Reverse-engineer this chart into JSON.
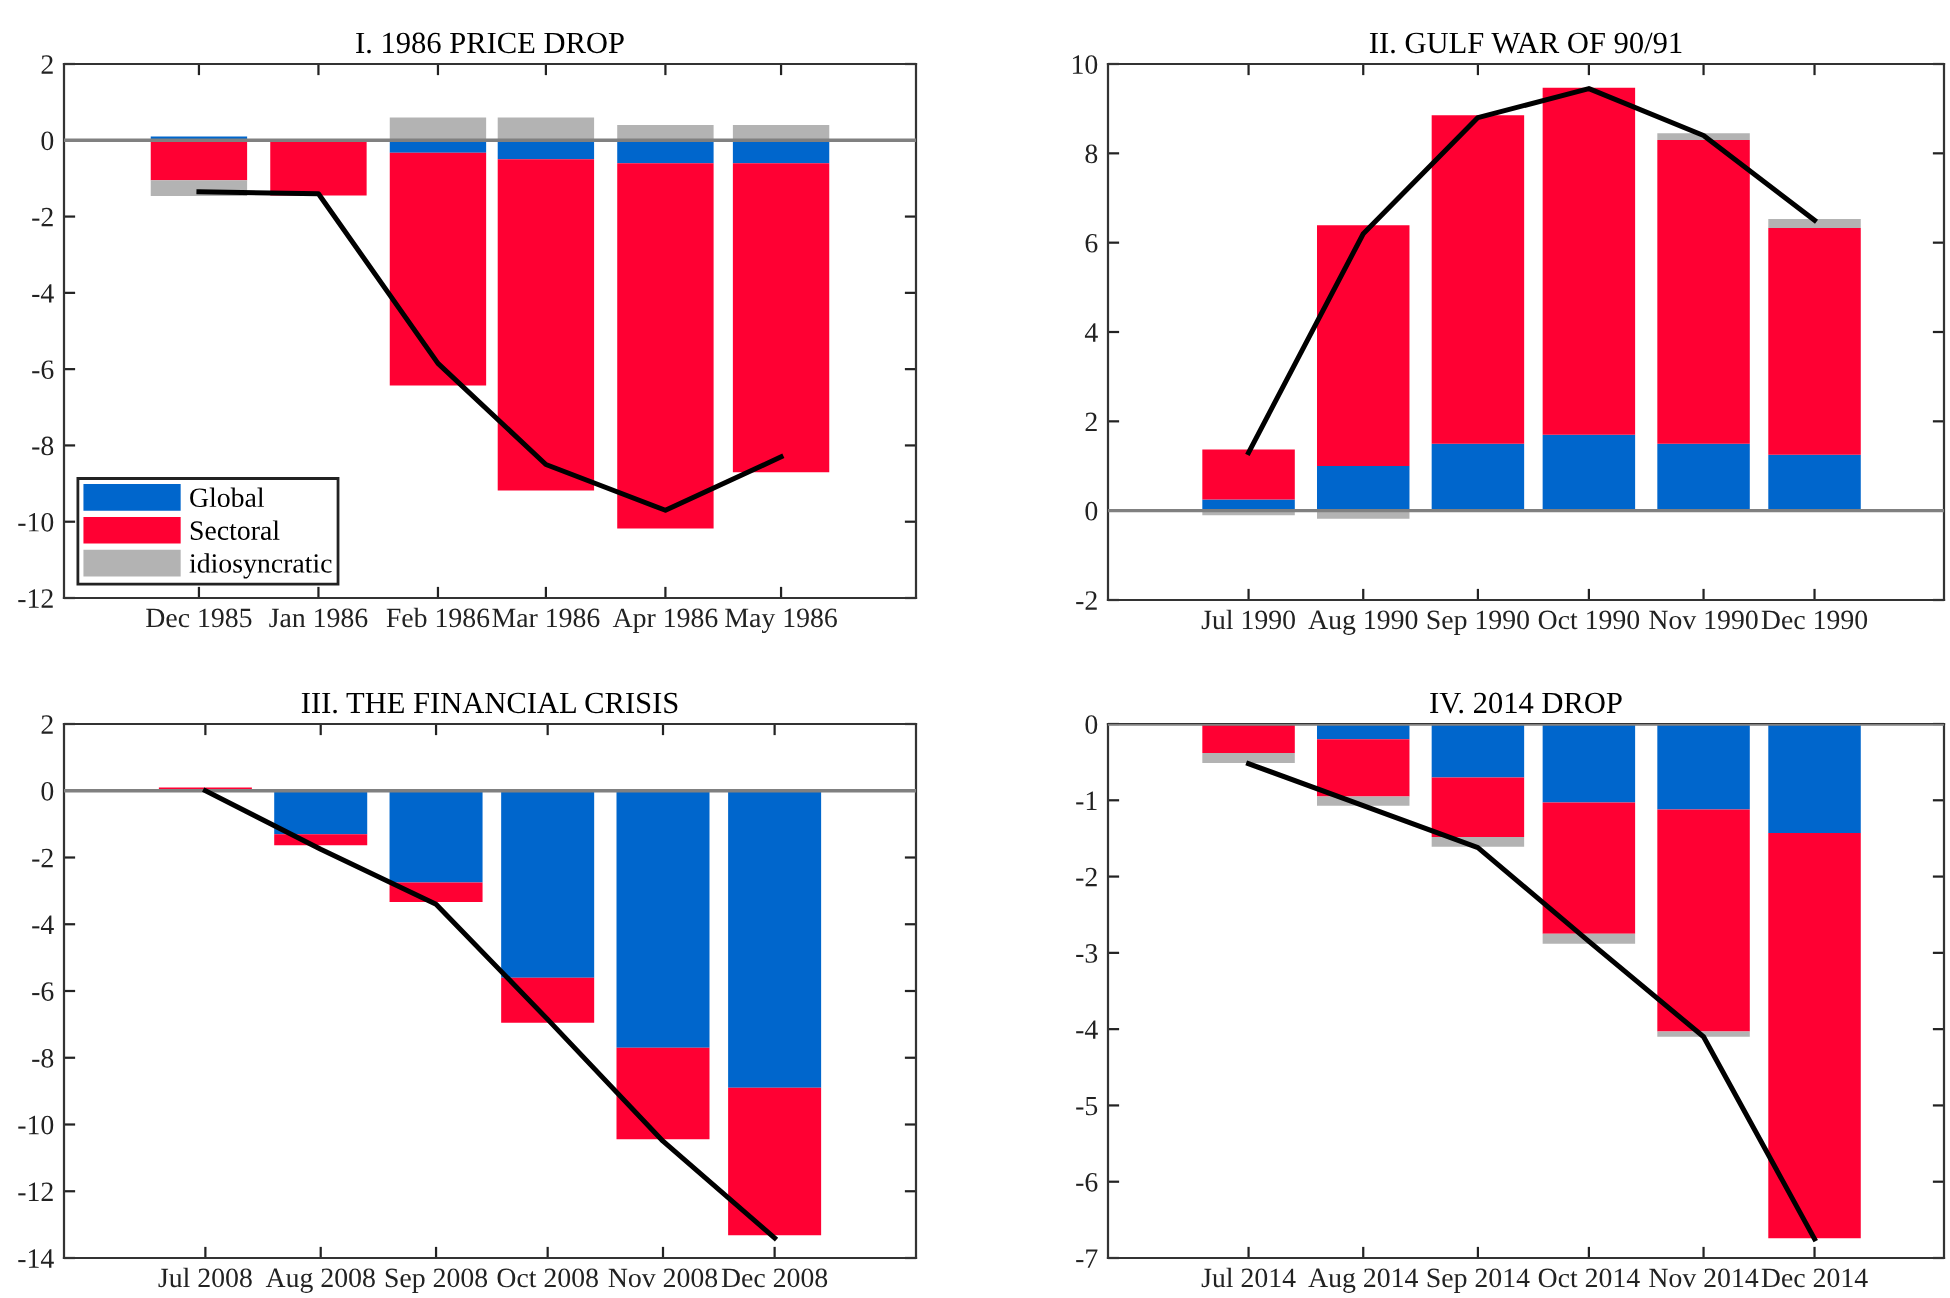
{
  "chart_data": [
    {
      "type": "bar",
      "stacked": true,
      "title": "I. 1986 PRICE DROP",
      "x": [
        "1985-12",
        "1986-01",
        "1986-02",
        "1986-03",
        "1986-04",
        "1986-05"
      ],
      "xlim": [
        "1985-10-27",
        "1986-06-05"
      ],
      "xticks": [
        {
          "value": "1985-12",
          "label": "Dec 1985"
        },
        {
          "value": "1986-01",
          "label": "Jan 1986"
        },
        {
          "value": "1986-02",
          "label": "Feb 1986"
        },
        {
          "value": "1986-03",
          "label": "Mar 1986"
        },
        {
          "value": "1986-04",
          "label": "Apr 1986"
        },
        {
          "value": "1986-05",
          "label": "May 1986"
        }
      ],
      "ylim": [
        -12,
        2
      ],
      "yticks": [
        -12,
        -10,
        -8,
        -6,
        -4,
        -2,
        0,
        2
      ],
      "grid": false,
      "legend": "bottom left",
      "series": [
        {
          "name": "Global",
          "color": "#0066cc",
          "values": [
            0.1,
            0,
            -0.33,
            -0.5,
            -0.6,
            -0.6
          ]
        },
        {
          "name": "Sectoral",
          "color": "#ff0033",
          "values": [
            -1.05,
            -1.45,
            -6.1,
            -8.68,
            -9.58,
            -8.1
          ]
        },
        {
          "name": "idiosyncratic",
          "color": "#b3b3b3",
          "values": [
            -0.41,
            0,
            0.6,
            0.6,
            0.4,
            0.4
          ]
        },
        {
          "type": "line",
          "color": "#000000",
          "values": [
            -1.35,
            -1.4,
            -5.85,
            -8.5,
            -9.7,
            -8.3
          ]
        }
      ],
      "ref_lines": [
        {
          "axis": "y",
          "value": 0,
          "color": "#808080"
        }
      ]
    },
    {
      "type": "bar",
      "stacked": true,
      "title": "II. GULF WAR OF 90/91",
      "x": [
        "1990-07",
        "1990-08",
        "1990-09",
        "1990-10",
        "1990-11",
        "1990-12"
      ],
      "xlim": [
        "1990-05-24",
        "1991-01-05"
      ],
      "xticks": [
        {
          "value": "1990-07",
          "label": "Jul 1990"
        },
        {
          "value": "1990-08",
          "label": "Aug 1990"
        },
        {
          "value": "1990-09",
          "label": "Sep 1990"
        },
        {
          "value": "1990-10",
          "label": "Oct 1990"
        },
        {
          "value": "1990-11",
          "label": "Nov 1990"
        },
        {
          "value": "1990-12",
          "label": "Dec 1990"
        }
      ],
      "ylim": [
        -2,
        10
      ],
      "yticks": [
        -2,
        0,
        2,
        4,
        6,
        8,
        10
      ],
      "grid": false,
      "legend": false,
      "series": [
        {
          "color": "#0066cc",
          "values": [
            0.25,
            1.0,
            1.5,
            1.7,
            1.5,
            1.25
          ]
        },
        {
          "color": "#ff0033",
          "values": [
            1.12,
            5.39,
            7.35,
            7.77,
            6.8,
            5.08
          ]
        },
        {
          "color": "#b3b3b3",
          "values": [
            -0.1,
            -0.18,
            0,
            0,
            0.15,
            0.2
          ]
        },
        {
          "type": "line",
          "color": "#000000",
          "values": [
            1.3,
            6.2,
            8.8,
            9.45,
            8.4,
            6.5
          ]
        }
      ],
      "ref_lines": [
        {
          "axis": "y",
          "value": 0,
          "color": "#808080"
        }
      ]
    },
    {
      "type": "bar",
      "stacked": true,
      "title": "III. THE FINANCIAL CRISIS",
      "x": [
        "2008-07",
        "2008-08",
        "2008-09",
        "2008-10",
        "2008-11",
        "2008-12"
      ],
      "xlim": [
        "2008-05-24",
        "2009-01-08"
      ],
      "xticks": [
        {
          "value": "2008-07",
          "label": "Jul 2008"
        },
        {
          "value": "2008-08",
          "label": "Aug 2008"
        },
        {
          "value": "2008-09",
          "label": "Sep 2008"
        },
        {
          "value": "2008-10",
          "label": "Oct 2008"
        },
        {
          "value": "2008-11",
          "label": "Nov 2008"
        },
        {
          "value": "2008-12",
          "label": "Dec 2008"
        }
      ],
      "ylim": [
        -14,
        2
      ],
      "yticks": [
        -14,
        -12,
        -10,
        -8,
        -6,
        -4,
        -2,
        0,
        2
      ],
      "grid": false,
      "legend": false,
      "series": [
        {
          "color": "#0066cc",
          "values": [
            0,
            -1.3,
            -2.75,
            -5.6,
            -7.7,
            -8.9
          ]
        },
        {
          "color": "#ff0033",
          "values": [
            0.1,
            -0.33,
            -0.58,
            -1.35,
            -2.74,
            -4.42
          ]
        },
        {
          "color": "#b3b3b3",
          "values": [
            0,
            null,
            null,
            0,
            0,
            null
          ]
        },
        {
          "type": "line",
          "color": "#000000",
          "values": [
            0,
            -1.75,
            -3.4,
            -6.85,
            -10.5,
            -13.4
          ]
        }
      ],
      "ref_lines": [
        {
          "axis": "y",
          "value": 0,
          "color": "#808080"
        }
      ]
    },
    {
      "type": "bar",
      "stacked": true,
      "title": "IV. 2014 DROP",
      "x": [
        "2014-07",
        "2014-08",
        "2014-09",
        "2014-10",
        "2014-11",
        "2014-12"
      ],
      "xlim": [
        "2014-05-24",
        "2015-01-05"
      ],
      "xticks": [
        {
          "value": "2014-07",
          "label": "Jul 2014"
        },
        {
          "value": "2014-08",
          "label": "Aug 2014"
        },
        {
          "value": "2014-09",
          "label": "Sep 2014"
        },
        {
          "value": "2014-10",
          "label": "Oct 2014"
        },
        {
          "value": "2014-11",
          "label": "Nov 2014"
        },
        {
          "value": "2014-12",
          "label": "Dec 2014"
        }
      ],
      "ylim": [
        -7,
        0
      ],
      "yticks": [
        -7,
        -6,
        -5,
        -4,
        -3,
        -2,
        -1,
        0
      ],
      "grid": false,
      "legend": false,
      "series": [
        {
          "color": "#0066cc",
          "values": [
            0,
            -0.2,
            -0.7,
            -1.03,
            -1.12,
            -1.43
          ]
        },
        {
          "color": "#ff0033",
          "values": [
            -0.38,
            -0.75,
            -0.78,
            -1.72,
            -2.91,
            -5.31
          ]
        },
        {
          "color": "#b3b3b3",
          "values": [
            -0.13,
            -0.12,
            -0.13,
            -0.13,
            -0.07,
            0
          ]
        },
        {
          "type": "line",
          "color": "#000000",
          "values": [
            -0.52,
            -1.07,
            -1.62,
            -2.85,
            -4.1,
            -6.75
          ]
        }
      ],
      "ref_lines": [
        {
          "axis": "y",
          "value": 0,
          "color": "#808080"
        }
      ]
    }
  ]
}
